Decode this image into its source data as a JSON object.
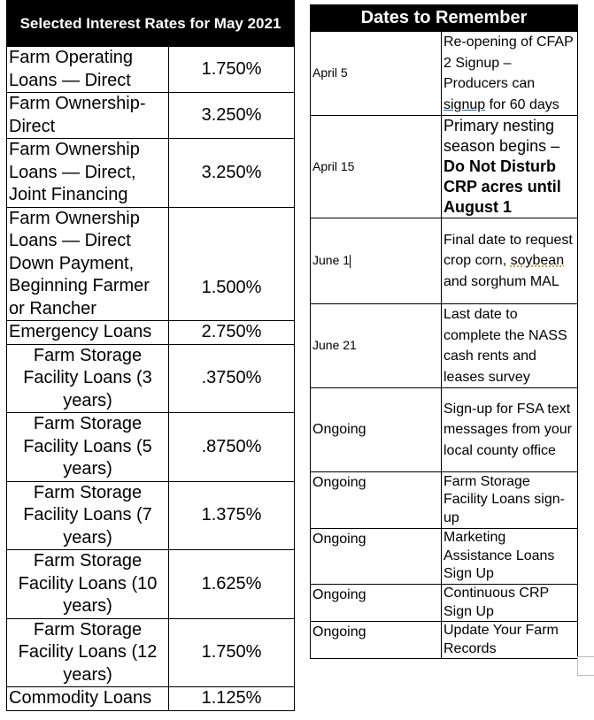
{
  "rates": {
    "title": "Selected Interest Rates for May 2021",
    "rows": [
      {
        "label": "Farm Operating Loans — Direct",
        "rate": "1.750%"
      },
      {
        "label": "Farm Ownership-Direct",
        "rate": "3.250%"
      },
      {
        "label": "Farm Ownership Loans — Direct, Joint Financing",
        "rate": "3.250%"
      },
      {
        "label": "Farm Ownership Loans — Direct Down Payment, Beginning Farmer or Rancher",
        "rate": "1.500%"
      },
      {
        "label": "Emergency Loans",
        "rate": "2.750%"
      },
      {
        "label": "Farm Storage Facility Loans (3 years)",
        "rate": ".3750%"
      },
      {
        "label": "Farm Storage Facility Loans (5 years)",
        "rate": ".8750%"
      },
      {
        "label": "Farm Storage Facility Loans (7 years)",
        "rate": "1.375%"
      },
      {
        "label": "Farm Storage Facility Loans (10 years)",
        "rate": "1.625%"
      },
      {
        "label": "Farm Storage Facility Loans (12 years)",
        "rate": "1.750%"
      },
      {
        "label": "Commodity Loans",
        "rate": "1.125%"
      }
    ]
  },
  "dates": {
    "title": "Dates to Remember",
    "rows": [
      {
        "date": "April 5",
        "text_a": "Re-opening of CFAP 2 Signup – Producers can ",
        "text_u": "signup",
        "text_b": " for 60 days"
      },
      {
        "date": "April 15",
        "text_a": "Primary nesting season begins – ",
        "text_bold": "Do Not Disturb CRP acres until August 1"
      },
      {
        "date": "June 1",
        "text_a": "Final date to request crop corn, ",
        "text_u": "soybean",
        "text_b": " and sorghum MAL"
      },
      {
        "date": "June 21",
        "text": "Last date to complete the NASS cash rents and leases survey"
      },
      {
        "date": "Ongoing",
        "text": "Sign-up for FSA text messages from your local county office"
      },
      {
        "date": "Ongoing",
        "text": "Farm Storage Facility Loans sign-up"
      },
      {
        "date": "Ongoing",
        "text": "Marketing Assistance Loans Sign Up"
      },
      {
        "date": "Ongoing",
        "text": "Continuous CRP Sign Up"
      },
      {
        "date": "Ongoing",
        "text": "Update Your Farm Records"
      }
    ]
  }
}
